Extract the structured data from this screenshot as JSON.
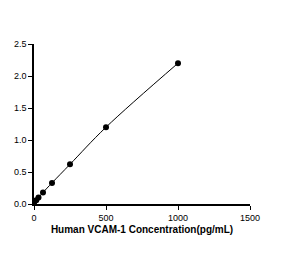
{
  "chart_data": {
    "type": "scatter",
    "x_label": "Human VCAM-1 Concentration(pg/mL)",
    "x": [
      0,
      15.6,
      31.25,
      62.5,
      125,
      250,
      500,
      1000
    ],
    "values": [
      0.02,
      0.06,
      0.1,
      0.18,
      0.33,
      0.62,
      1.2,
      2.2
    ],
    "color": "#000000",
    "marker": "circle",
    "line_style": "solid",
    "xlim": [
      0,
      1500
    ],
    "xticks": [
      0,
      500,
      1000,
      1500
    ],
    "ylim": [
      0,
      2.5
    ],
    "yticks": [
      {
        "value": 0,
        "label": "0.0"
      },
      0.5,
      {
        "value": 1,
        "label": "1.0"
      },
      1.5,
      {
        "value": 2,
        "label": "2.0"
      },
      2.5
    ],
    "grid": false
  }
}
